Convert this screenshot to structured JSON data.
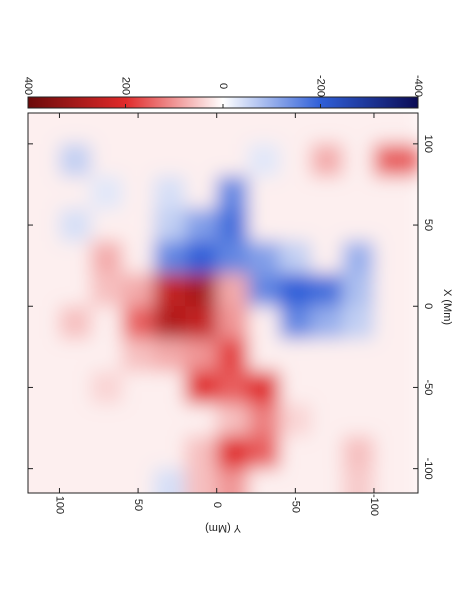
{
  "chart_data": {
    "type": "heatmap",
    "xlabel": "X (Mm)",
    "ylabel": "Y (Mm)",
    "x": [
      110,
      90,
      70,
      50,
      30,
      10,
      -10,
      -30,
      -50,
      -70,
      -90,
      -110
    ],
    "y": [
      110,
      90,
      70,
      50,
      30,
      10,
      -10,
      -30,
      -50,
      -70,
      -90,
      -110
    ],
    "values": [
      [
        15,
        15,
        15,
        15,
        15,
        15,
        15,
        15,
        15,
        15,
        15,
        15
      ],
      [
        15,
        -60,
        15,
        15,
        15,
        15,
        15,
        -30,
        15,
        80,
        15,
        150
      ],
      [
        15,
        15,
        -30,
        15,
        -40,
        15,
        -150,
        15,
        15,
        15,
        15,
        15
      ],
      [
        15,
        -40,
        15,
        15,
        -60,
        -120,
        -180,
        15,
        15,
        15,
        15,
        15
      ],
      [
        15,
        15,
        80,
        15,
        -150,
        -200,
        -150,
        -120,
        -60,
        15,
        -100,
        15
      ],
      [
        15,
        15,
        60,
        80,
        250,
        300,
        80,
        -150,
        -200,
        -180,
        -80,
        15
      ],
      [
        15,
        60,
        15,
        150,
        280,
        250,
        100,
        15,
        -150,
        -100,
        -60,
        15
      ],
      [
        15,
        15,
        15,
        60,
        80,
        100,
        180,
        15,
        15,
        15,
        15,
        15
      ],
      [
        15,
        15,
        40,
        15,
        15,
        200,
        150,
        200,
        15,
        15,
        15,
        15
      ],
      [
        15,
        15,
        15,
        15,
        15,
        15,
        60,
        120,
        40,
        15,
        15,
        15
      ],
      [
        15,
        15,
        15,
        15,
        15,
        60,
        200,
        150,
        15,
        15,
        60,
        15
      ],
      [
        15,
        15,
        15,
        15,
        -40,
        60,
        100,
        15,
        15,
        15,
        50,
        15
      ]
    ],
    "xlim": [
      -115,
      119
    ],
    "xticks": [
      -100,
      -50,
      0,
      50,
      100
    ],
    "ylim": [
      -128,
      120
    ],
    "yticks": [
      -100,
      -50,
      0,
      50,
      100
    ],
    "clim": [
      -400,
      400
    ],
    "cticks": [
      -400,
      -200,
      0,
      200,
      400
    ],
    "colormap": [
      "#6b0a0a",
      "#e02a2a",
      "#ffffff",
      "#2f5fd8",
      "#0b0b55"
    ]
  }
}
